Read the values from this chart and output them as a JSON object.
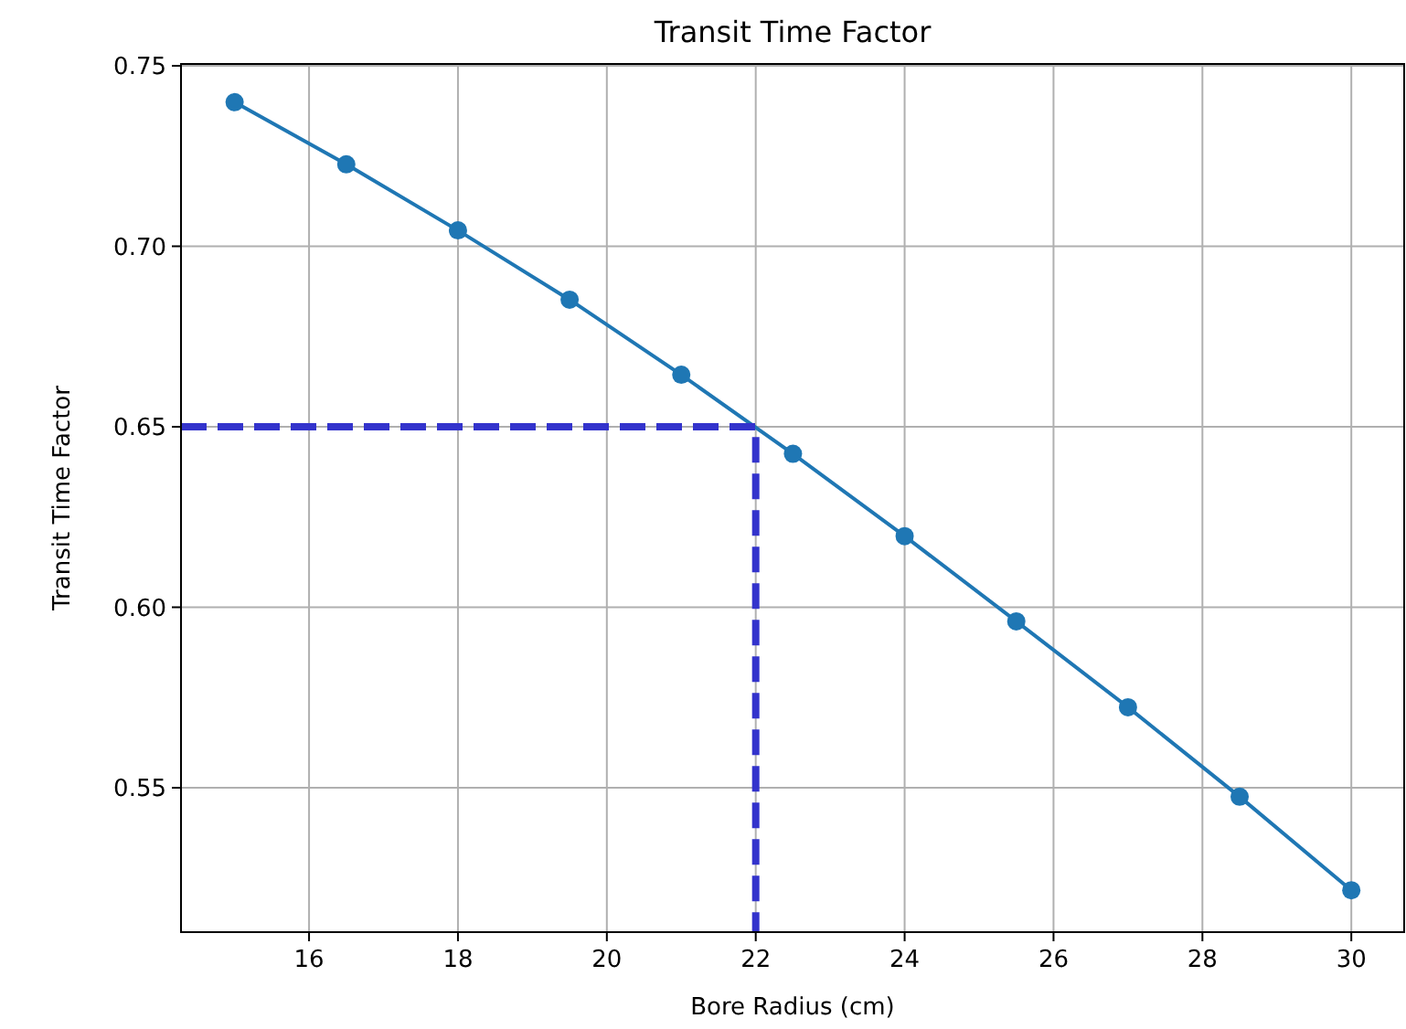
{
  "chart_data": {
    "type": "line",
    "title": "Transit Time Factor",
    "xlabel": "Bore Radius (cm)",
    "ylabel": "Transit Time Factor",
    "xlim": [
      14.28,
      30.71
    ],
    "ylim": [
      0.51,
      0.7505
    ],
    "xticks": [
      16,
      18,
      20,
      22,
      24,
      26,
      28,
      30
    ],
    "yticks": [
      {
        "value": 0.55,
        "label": "0.55"
      },
      {
        "value": 0.6,
        "label": "0.60"
      },
      {
        "value": 0.65,
        "label": "0.65"
      },
      {
        "value": 0.7,
        "label": "0.70"
      },
      {
        "value": 0.75,
        "label": "0.75"
      }
    ],
    "grid": true,
    "series": [
      {
        "color": "#1f77b4",
        "marker": "circle",
        "line_style": "solid",
        "x": [
          15,
          16.5,
          18,
          19.5,
          21,
          22.5,
          24,
          25.5,
          27,
          28.5,
          30
        ],
        "values": [
          0.7399,
          0.7227,
          0.7044,
          0.6852,
          0.6644,
          0.6425,
          0.6197,
          0.5961,
          0.5723,
          0.5475,
          0.5216
        ]
      },
      {
        "color": "#3333cc",
        "marker": "none",
        "line_style": "dashed",
        "x": [
          14.28,
          22,
          22
        ],
        "values": [
          0.65,
          0.65,
          0.51
        ]
      }
    ]
  }
}
